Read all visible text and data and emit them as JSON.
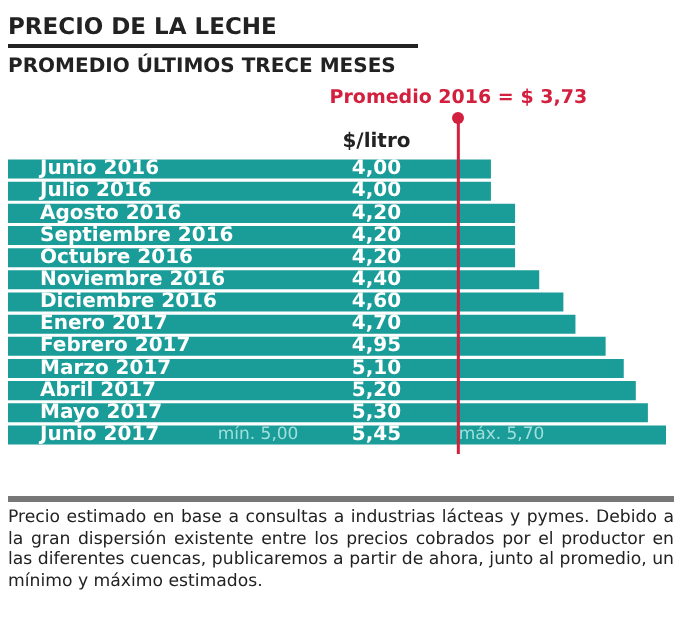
{
  "chart_data": {
    "type": "bar",
    "orientation": "horizontal",
    "title": "PRECIO DE LA LECHE",
    "subtitle": "PROMEDIO ÚLTIMOS TRECE MESES",
    "xlabel": "$/litro",
    "categories": [
      "Junio 2016",
      "Julio 2016",
      "Agosto 2016",
      "Septiembre 2016",
      "Octubre 2016",
      "Noviembre 2016",
      "Diciembre 2016",
      "Enero 2017",
      "Febrero 2017",
      "Marzo 2017",
      "Abril 2017",
      "Mayo 2017",
      "Junio 2017"
    ],
    "values": [
      4.0,
      4.0,
      4.2,
      4.2,
      4.2,
      4.4,
      4.6,
      4.7,
      4.95,
      5.1,
      5.2,
      5.3,
      5.45
    ],
    "value_labels": [
      "4,00",
      "4,00",
      "4,20",
      "4,20",
      "4,20",
      "4,40",
      "4,60",
      "4,70",
      "4,95",
      "5,10",
      "5,20",
      "5,30",
      "5,45"
    ],
    "color": "#1a9c98",
    "tick_labels": "y",
    "ref_lines": [
      {
        "axis": "x",
        "value": 3.73,
        "label": "Promedio 2016 = $ 3,73",
        "color": "#d3203e"
      }
    ],
    "annotations": [
      "mín. 5,00",
      "máx. 5,70",
      "Precio estimado en base a consultas a industrias lácteas y pymes. Debido a la gran dispersión existente entre los precios cobrados por el productor en las diferentes cuencas, publicaremos a partir de ahora, junto al promedio, un mínimo y máximo estimados."
    ]
  }
}
